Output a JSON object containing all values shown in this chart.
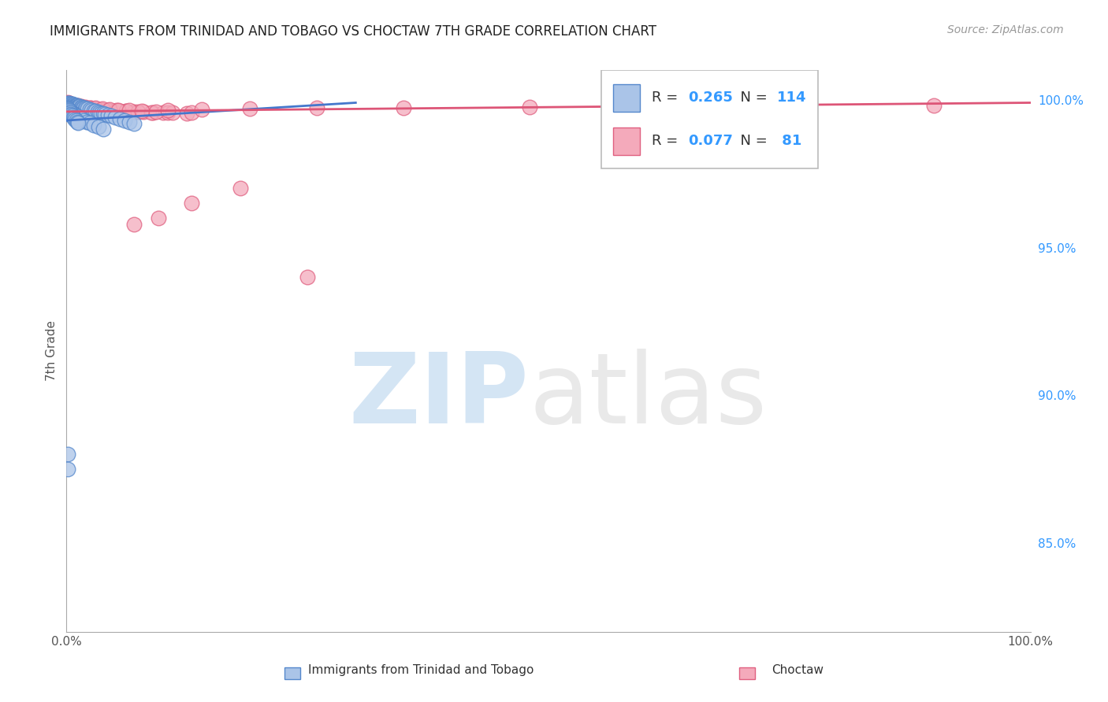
{
  "title": "IMMIGRANTS FROM TRINIDAD AND TOBAGO VS CHOCTAW 7TH GRADE CORRELATION CHART",
  "source": "Source: ZipAtlas.com",
  "ylabel": "7th Grade",
  "ylabel_right_ticks": [
    "100.0%",
    "95.0%",
    "90.0%",
    "85.0%"
  ],
  "ylabel_right_positions": [
    1.0,
    0.95,
    0.9,
    0.85
  ],
  "xlim": [
    0.0,
    1.0
  ],
  "ylim": [
    0.82,
    1.01
  ],
  "legend_blue_R": "0.265",
  "legend_blue_N": "114",
  "legend_pink_R": "0.077",
  "legend_pink_N": " 81",
  "blue_fill": "#aac4e8",
  "blue_edge": "#5588cc",
  "pink_fill": "#f4aabb",
  "pink_edge": "#e06080",
  "blue_line_color": "#4477cc",
  "pink_line_color": "#dd5577",
  "background_color": "#ffffff",
  "grid_color": "#cccccc",
  "blue_scatter_x": [
    0.001,
    0.001,
    0.001,
    0.001,
    0.001,
    0.001,
    0.002,
    0.002,
    0.002,
    0.002,
    0.002,
    0.002,
    0.003,
    0.003,
    0.003,
    0.003,
    0.003,
    0.004,
    0.004,
    0.004,
    0.004,
    0.005,
    0.005,
    0.005,
    0.005,
    0.006,
    0.006,
    0.006,
    0.007,
    0.007,
    0.007,
    0.008,
    0.008,
    0.008,
    0.009,
    0.009,
    0.01,
    0.01,
    0.01,
    0.011,
    0.011,
    0.012,
    0.012,
    0.013,
    0.013,
    0.014,
    0.015,
    0.016,
    0.017,
    0.018,
    0.019,
    0.02,
    0.022,
    0.024,
    0.026,
    0.028,
    0.03,
    0.032,
    0.034,
    0.036,
    0.038,
    0.04,
    0.043,
    0.046,
    0.05,
    0.055,
    0.06,
    0.065,
    0.001,
    0.001,
    0.001,
    0.002,
    0.002,
    0.002,
    0.003,
    0.003,
    0.004,
    0.004,
    0.005,
    0.005,
    0.006,
    0.007,
    0.008,
    0.009,
    0.01,
    0.012,
    0.014,
    0.016,
    0.018,
    0.021,
    0.024,
    0.028,
    0.033,
    0.038,
    0.001,
    0.001,
    0.07,
    0.001,
    0.001,
    0.002,
    0.002,
    0.003,
    0.003,
    0.003,
    0.004,
    0.004,
    0.005,
    0.006,
    0.007,
    0.008,
    0.009,
    0.01,
    0.011,
    0.012
  ],
  "blue_scatter_y": [
    0.999,
    0.9985,
    0.998,
    0.9975,
    0.997,
    0.9965,
    0.999,
    0.9985,
    0.998,
    0.9975,
    0.997,
    0.9965,
    0.9988,
    0.9984,
    0.998,
    0.9976,
    0.9972,
    0.9987,
    0.9983,
    0.9979,
    0.9975,
    0.9986,
    0.9982,
    0.9978,
    0.9974,
    0.9985,
    0.9981,
    0.9977,
    0.9984,
    0.998,
    0.9976,
    0.9983,
    0.9979,
    0.9975,
    0.9982,
    0.9978,
    0.9981,
    0.9977,
    0.9973,
    0.998,
    0.9976,
    0.9979,
    0.9975,
    0.9978,
    0.9974,
    0.9977,
    0.9976,
    0.9975,
    0.9974,
    0.9973,
    0.9972,
    0.9971,
    0.9969,
    0.9967,
    0.9965,
    0.9963,
    0.9961,
    0.9959,
    0.9957,
    0.9955,
    0.9953,
    0.9951,
    0.9948,
    0.9945,
    0.994,
    0.9935,
    0.993,
    0.9925,
    0.9965,
    0.996,
    0.9955,
    0.9963,
    0.9958,
    0.9953,
    0.9961,
    0.9956,
    0.9959,
    0.9954,
    0.9957,
    0.9952,
    0.9955,
    0.9953,
    0.9951,
    0.9949,
    0.9947,
    0.9943,
    0.9939,
    0.9935,
    0.9931,
    0.9926,
    0.9921,
    0.9915,
    0.9908,
    0.99,
    0.88,
    0.875,
    0.992,
    0.996,
    0.997,
    0.9968,
    0.9964,
    0.9962,
    0.9958,
    0.9954,
    0.9956,
    0.9952,
    0.995,
    0.9946,
    0.9942,
    0.9938,
    0.9934,
    0.993,
    0.9926,
    0.9922
  ],
  "pink_scatter_x": [
    0.001,
    0.002,
    0.003,
    0.004,
    0.005,
    0.006,
    0.007,
    0.008,
    0.009,
    0.01,
    0.011,
    0.012,
    0.013,
    0.014,
    0.016,
    0.018,
    0.02,
    0.023,
    0.026,
    0.03,
    0.034,
    0.038,
    0.043,
    0.048,
    0.055,
    0.062,
    0.07,
    0.08,
    0.09,
    0.1,
    0.002,
    0.004,
    0.006,
    0.008,
    0.01,
    0.013,
    0.016,
    0.02,
    0.025,
    0.03,
    0.036,
    0.043,
    0.052,
    0.062,
    0.074,
    0.088,
    0.105,
    0.125,
    0.001,
    0.002,
    0.003,
    0.005,
    0.007,
    0.009,
    0.012,
    0.015,
    0.019,
    0.024,
    0.03,
    0.037,
    0.045,
    0.054,
    0.065,
    0.078,
    0.093,
    0.11,
    0.13,
    0.58,
    0.9,
    0.65,
    0.48,
    0.35,
    0.26,
    0.19,
    0.14,
    0.105,
    0.25,
    0.18,
    0.13,
    0.095,
    0.07
  ],
  "pink_scatter_y": [
    0.999,
    0.9985,
    0.9984,
    0.9983,
    0.9982,
    0.9981,
    0.998,
    0.9979,
    0.9978,
    0.9977,
    0.9976,
    0.9975,
    0.9974,
    0.9973,
    0.9972,
    0.9971,
    0.997,
    0.9969,
    0.9968,
    0.9967,
    0.9966,
    0.9965,
    0.9964,
    0.9963,
    0.9962,
    0.9961,
    0.996,
    0.9959,
    0.9958,
    0.9957,
    0.9988,
    0.9986,
    0.9984,
    0.9982,
    0.998,
    0.9978,
    0.9976,
    0.9974,
    0.9972,
    0.997,
    0.9968,
    0.9966,
    0.9964,
    0.9962,
    0.996,
    0.9958,
    0.9956,
    0.9954,
    0.9992,
    0.999,
    0.9988,
    0.9986,
    0.9984,
    0.9982,
    0.998,
    0.9978,
    0.9976,
    0.9974,
    0.9972,
    0.997,
    0.9968,
    0.9966,
    0.9964,
    0.9962,
    0.996,
    0.9958,
    0.9956,
    1.0,
    0.998,
    0.9978,
    0.9976,
    0.9974,
    0.9972,
    0.997,
    0.9968,
    0.9966,
    0.94,
    0.97,
    0.965,
    0.96,
    0.958
  ],
  "blue_trend_x": [
    0.0,
    0.3
  ],
  "blue_trend_y": [
    0.993,
    0.999
  ],
  "pink_trend_x": [
    0.0,
    1.0
  ],
  "pink_trend_y": [
    0.996,
    0.999
  ]
}
